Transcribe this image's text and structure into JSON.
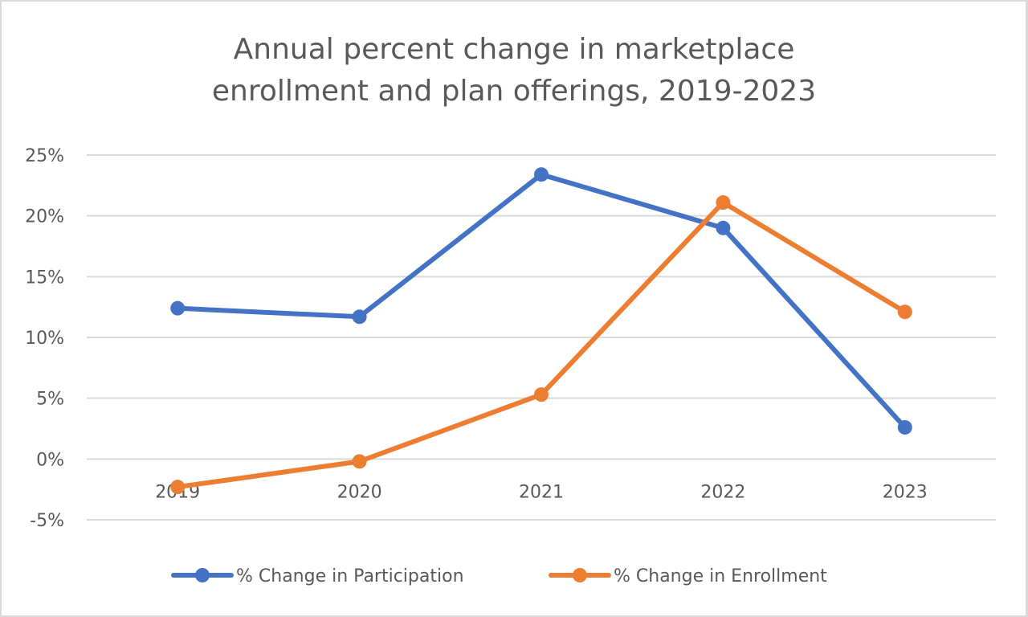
{
  "chart_data": {
    "type": "line",
    "title_lines": [
      "Annual percent change in marketplace",
      "enrollment and plan offerings, 2019-2023"
    ],
    "title": "Annual percent change in marketplace enrollment and plan offerings, 2019-2023",
    "xlabel": "",
    "ylabel": "",
    "categories": [
      "2019",
      "2020",
      "2021",
      "2022",
      "2023"
    ],
    "ylim": [
      -5,
      25
    ],
    "yticks": [
      -5,
      0,
      5,
      10,
      15,
      20,
      25
    ],
    "ytick_labels": [
      "-5%",
      "0%",
      "5%",
      "10%",
      "15%",
      "20%",
      "25%"
    ],
    "grid": true,
    "legend_position": "bottom",
    "series": [
      {
        "name": "% Change in Participation",
        "color": "#4472c4",
        "values": [
          12.4,
          11.7,
          23.4,
          19.0,
          2.6
        ]
      },
      {
        "name": "% Change in Enrollment",
        "color": "#ed7d31",
        "values": [
          -2.3,
          -0.2,
          5.3,
          21.1,
          12.1
        ]
      }
    ]
  }
}
